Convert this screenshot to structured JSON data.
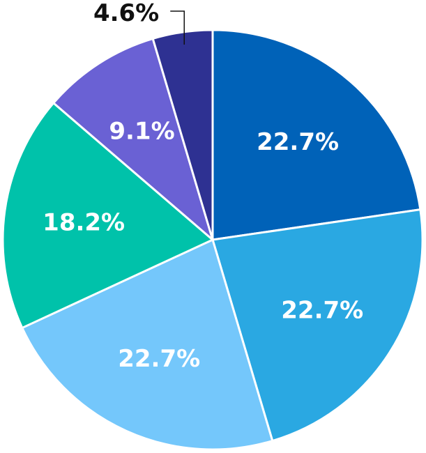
{
  "chart_data": {
    "type": "pie",
    "start_angle_deg": 0,
    "direction": "clockwise",
    "slices": [
      {
        "value": 22.7,
        "label": "22.7%",
        "color": "#0062B8",
        "label_position": "inside"
      },
      {
        "value": 22.7,
        "label": "22.7%",
        "color": "#2AA8E2",
        "label_position": "inside"
      },
      {
        "value": 22.7,
        "label": "22.7%",
        "color": "#74C7FB",
        "label_position": "inside"
      },
      {
        "value": 18.2,
        "label": "18.2%",
        "color": "#00C2AA",
        "label_position": "inside"
      },
      {
        "value": 9.1,
        "label": "9.1%",
        "color": "#6A61D4",
        "label_position": "inside"
      },
      {
        "value": 4.6,
        "label": "4.6%",
        "color": "#2E3192",
        "label_position": "outside"
      }
    ],
    "separator_color": "#ffffff"
  }
}
